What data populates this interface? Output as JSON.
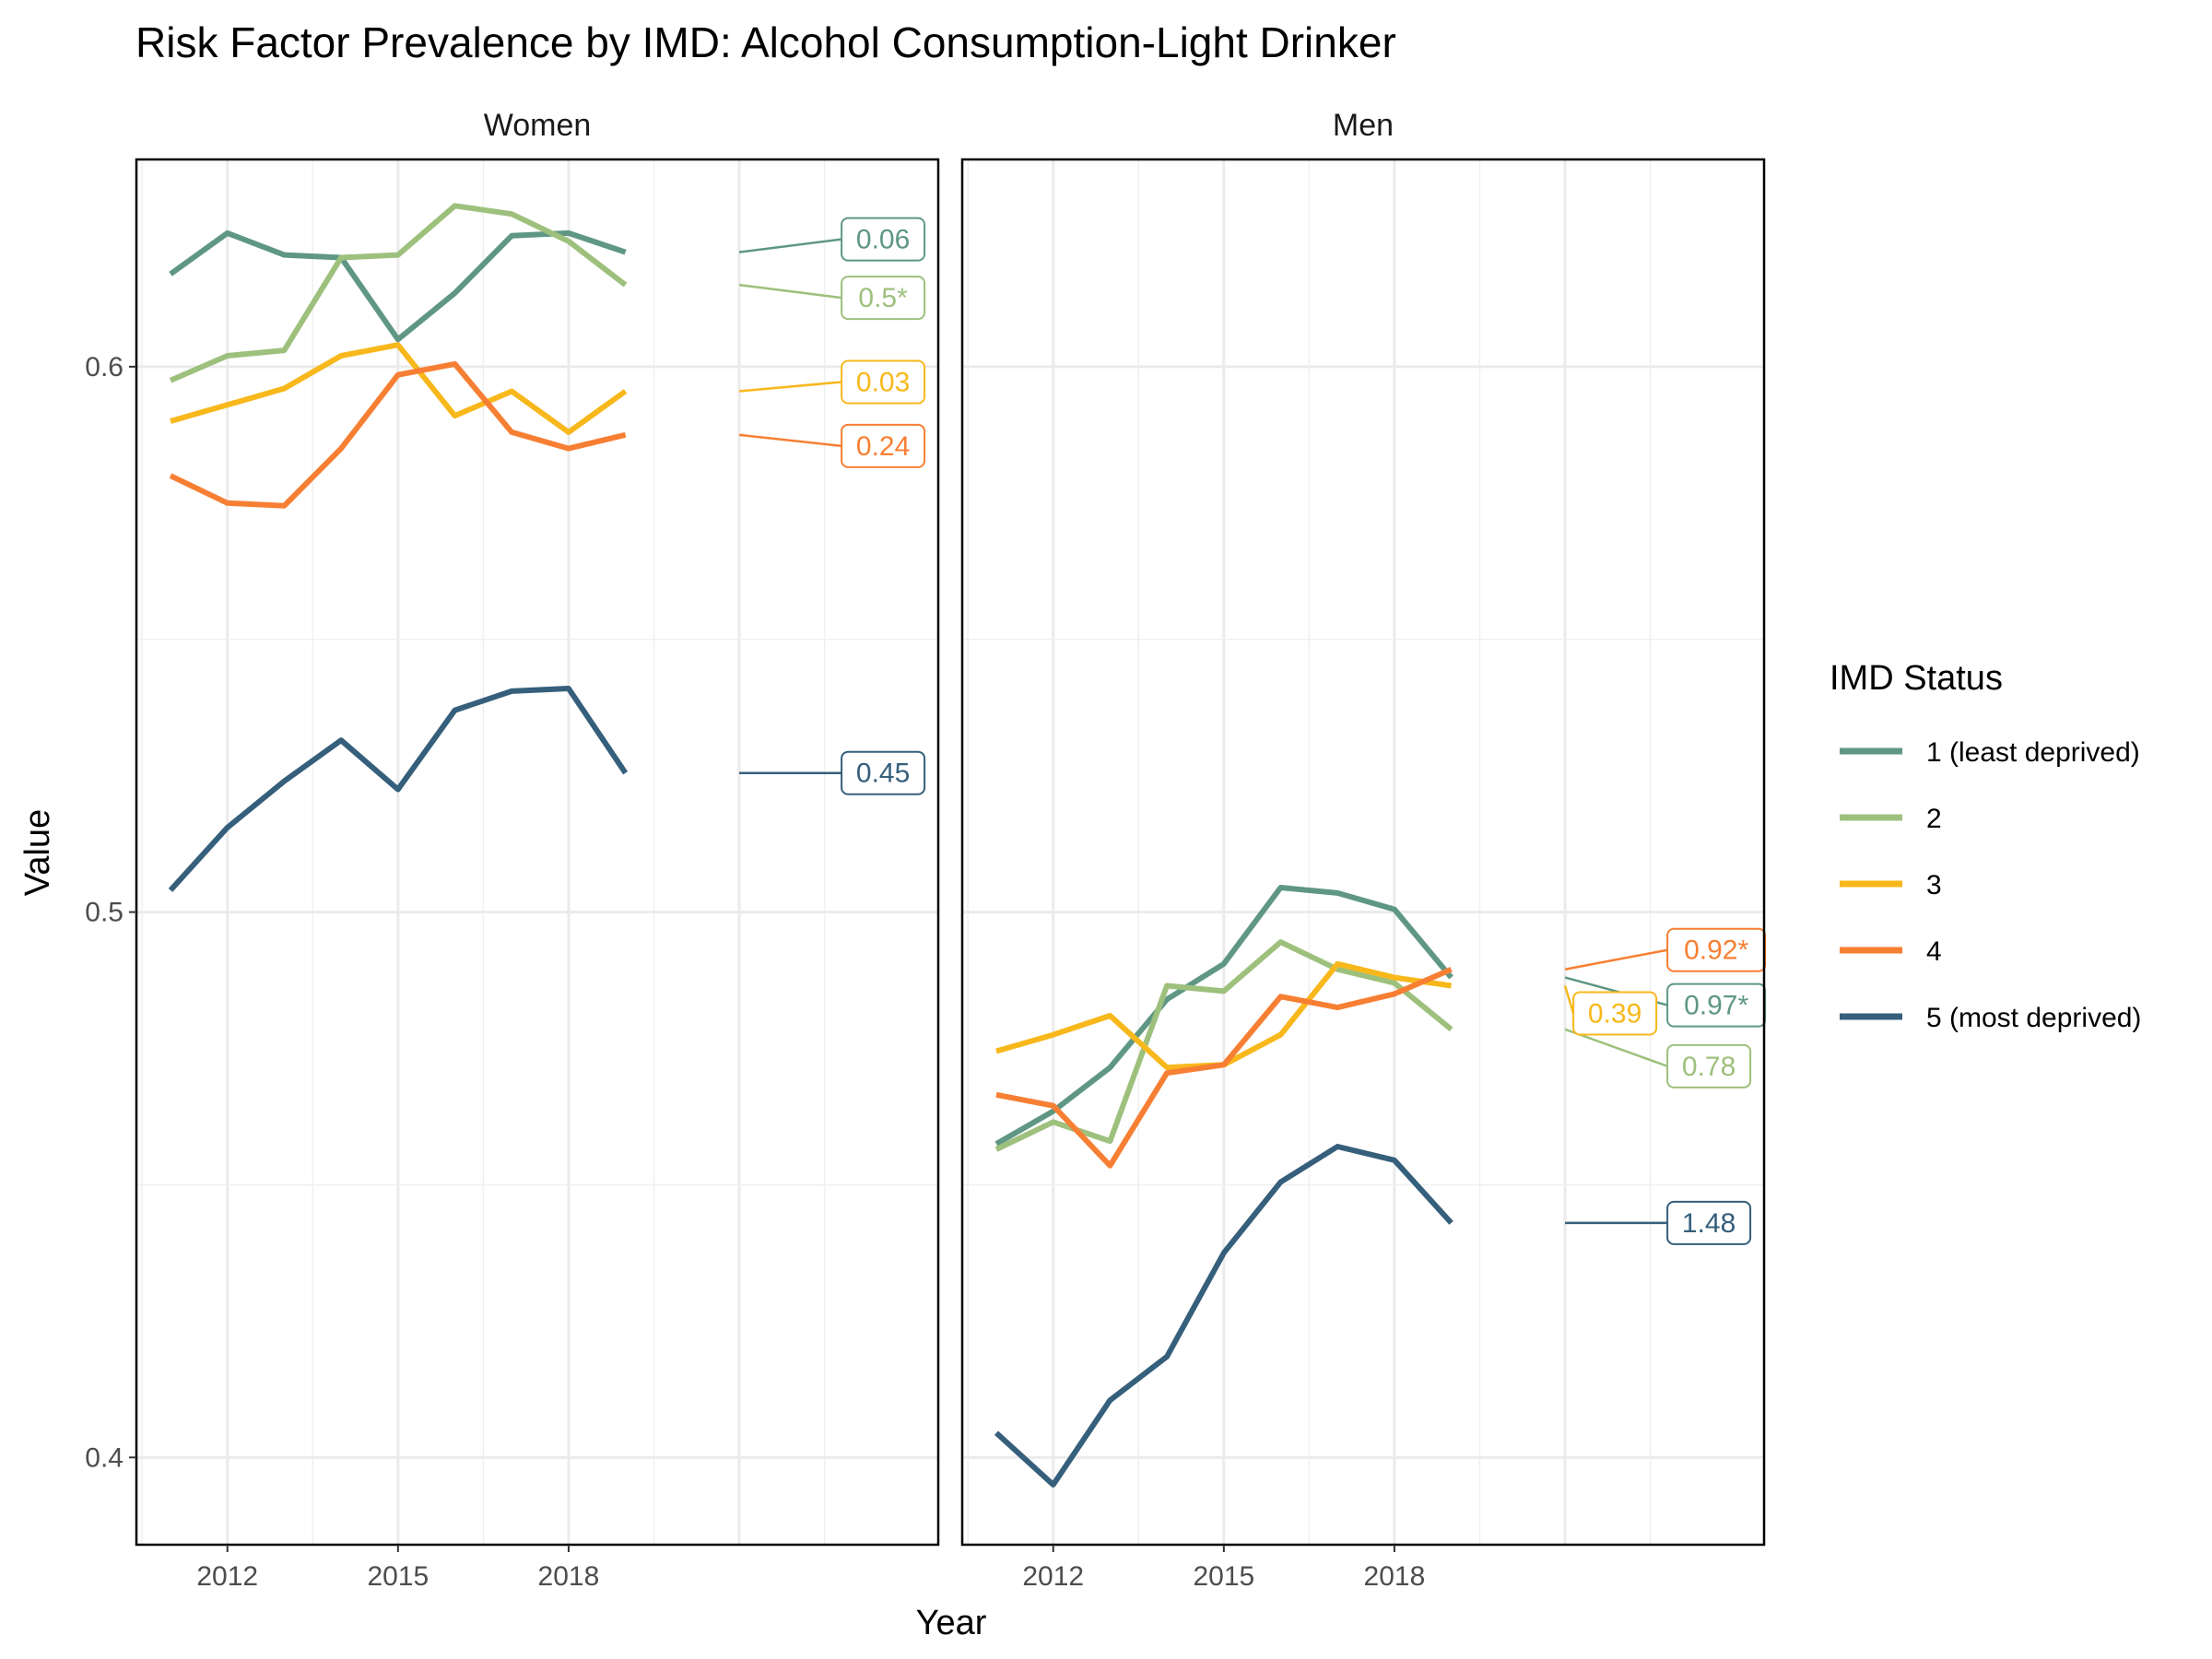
{
  "chart_data": {
    "type": "line",
    "title": "Risk Factor Prevalence by IMD: Alcohol Consumption-Light Drinker",
    "xlabel": "Year",
    "ylabel": "Value",
    "x_ticks": [
      2012,
      2015,
      2018
    ],
    "y_ticks": [
      0.4,
      0.5,
      0.6
    ],
    "legend_title": "IMD Status",
    "legend_position": "right",
    "grid": true,
    "panels": [
      {
        "name": "Women",
        "xlim": [
          2010.4,
          2024.5
        ],
        "ylim": [
          0.384,
          0.638
        ],
        "x": [
          2011,
          2012,
          2013,
          2014,
          2015,
          2016,
          2017,
          2018,
          2019
        ],
        "series": [
          {
            "name": "1 (least deprived)",
            "color": "#5f9784",
            "values": [
              0.617,
              0.6245,
              0.6205,
              0.62,
              0.605,
              0.6135,
              0.624,
              0.6245,
              0.621
            ],
            "label": "0.06"
          },
          {
            "name": "2",
            "color": "#9ec07d",
            "values": [
              0.5975,
              0.602,
              0.603,
              0.62,
              0.6205,
              0.6295,
              0.628,
              0.623,
              0.615
            ],
            "label": "0.5*"
          },
          {
            "name": "3",
            "color": "#f8b81c",
            "values": [
              0.59,
              0.593,
              0.596,
              0.602,
              0.604,
              0.591,
              0.5955,
              0.588,
              0.5955
            ],
            "label": "0.03"
          },
          {
            "name": "4",
            "color": "#f77f33",
            "values": [
              0.58,
              0.575,
              0.5745,
              0.585,
              0.5985,
              0.6005,
              0.588,
              0.585,
              0.5875
            ],
            "label": "0.24"
          },
          {
            "name": "5 (most deprived)",
            "color": "#355f7b",
            "values": [
              0.504,
              0.5155,
              0.524,
              0.5315,
              0.5225,
              0.537,
              0.5405,
              0.541,
              0.5255
            ],
            "label": "0.45"
          }
        ]
      },
      {
        "name": "Men",
        "xlim": [
          2010.4,
          2024.5
        ],
        "ylim": [
          0.384,
          0.638
        ],
        "x": [
          2011,
          2012,
          2013,
          2014,
          2015,
          2016,
          2017,
          2018,
          2019
        ],
        "series": [
          {
            "name": "1 (least deprived)",
            "color": "#5f9784",
            "values": [
              0.4575,
              0.4635,
              0.4715,
              0.484,
              0.4905,
              0.5045,
              0.5035,
              0.5005,
              0.488
            ],
            "label": "0.97*"
          },
          {
            "name": "2",
            "color": "#9ec07d",
            "values": [
              0.4565,
              0.4615,
              0.458,
              0.4865,
              0.4855,
              0.4945,
              0.4895,
              0.487,
              0.4785
            ],
            "label": "0.78"
          },
          {
            "name": "3",
            "color": "#f8b81c",
            "values": [
              0.4745,
              0.4775,
              0.481,
              0.4715,
              0.472,
              0.4775,
              0.4905,
              0.488,
              0.4865
            ],
            "label": "0.39"
          },
          {
            "name": "4",
            "color": "#f77f33",
            "values": [
              0.4665,
              0.4645,
              0.4535,
              0.4705,
              0.472,
              0.4845,
              0.4825,
              0.485,
              0.4895
            ],
            "label": "0.92*"
          },
          {
            "name": "5 (most deprived)",
            "color": "#355f7b",
            "values": [
              0.4045,
              0.395,
              0.4105,
              0.4185,
              0.4375,
              0.4505,
              0.457,
              0.4545,
              0.443
            ],
            "label": "1.48"
          }
        ]
      }
    ]
  }
}
